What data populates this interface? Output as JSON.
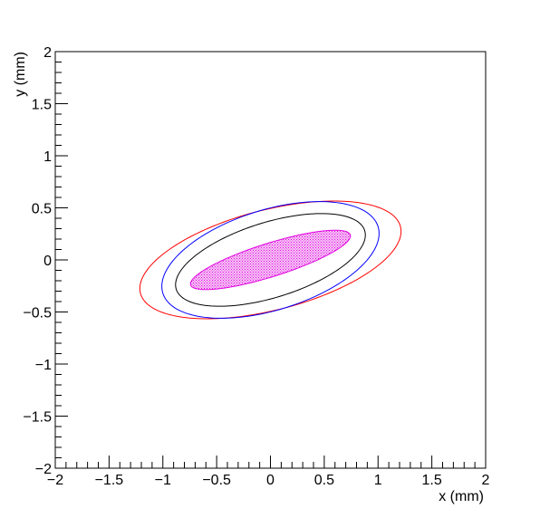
{
  "chart_data": {
    "type": "ellipse",
    "xlabel": "x (mm)",
    "ylabel": "y (mm)",
    "xlim": [
      -2,
      2
    ],
    "ylim": [
      -2,
      2
    ],
    "xticks": [
      {
        "value": -2,
        "label": "−2"
      },
      {
        "value": -1.5,
        "label": "−1.5"
      },
      {
        "value": -1,
        "label": "−1"
      },
      {
        "value": -0.5,
        "label": "−0.5"
      },
      0,
      0.5,
      1,
      1.5,
      2
    ],
    "yticks": [
      {
        "value": -2,
        "label": "−2"
      },
      {
        "value": -1.5,
        "label": "−1.5"
      },
      {
        "value": -1,
        "label": "−1"
      },
      {
        "value": -0.5,
        "label": "−0.5"
      },
      0,
      0.5,
      1,
      1.5,
      2
    ],
    "series": [
      {
        "color": "#ff0000",
        "center": [
          0,
          0
        ],
        "a": 1.25,
        "b": 0.48,
        "angle": 15,
        "filled": false
      },
      {
        "color": "#0000ff",
        "center": [
          0,
          0
        ],
        "a": 1.05,
        "b": 0.48,
        "angle": 18,
        "filled": false
      },
      {
        "color": "#000000",
        "center": [
          0,
          0
        ],
        "a": 0.92,
        "b": 0.36,
        "angle": 18,
        "filled": false
      },
      {
        "color": "#e000e0",
        "center": [
          0,
          0
        ],
        "a": 0.78,
        "b": 0.16,
        "angle": 18,
        "filled": true
      }
    ]
  }
}
